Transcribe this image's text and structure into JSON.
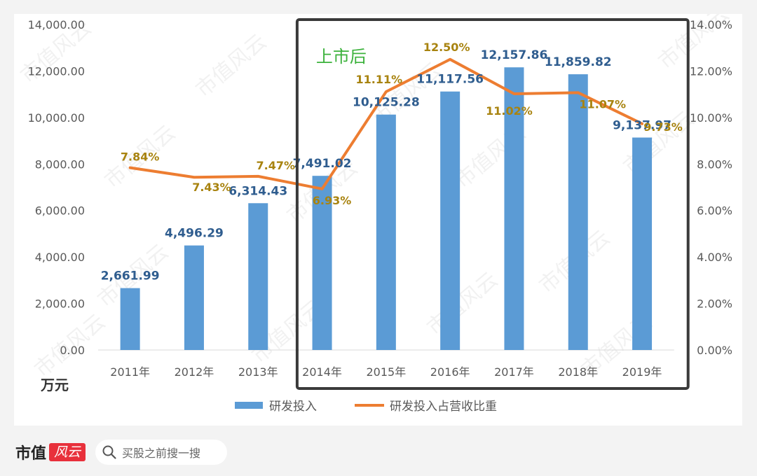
{
  "chart_data": {
    "type": "bar",
    "categories": [
      "2011年",
      "2012年",
      "2013年",
      "2014年",
      "2015年",
      "2016年",
      "2017年",
      "2018年",
      "2019年"
    ],
    "series": [
      {
        "name": "研发投入",
        "type": "bar",
        "axis": "left",
        "values": [
          2661.99,
          4496.29,
          6314.43,
          7491.02,
          10125.28,
          11117.56,
          12157.86,
          11859.82,
          9137.97
        ],
        "labels": [
          "2,661.99",
          "4,496.29",
          "6,314.43",
          "7,491.02",
          "10,125.28",
          "11,117.56",
          "12,157.86",
          "11,859.82",
          "9,137.97"
        ],
        "color": "#5b9bd5"
      },
      {
        "name": "研发投入占营收比重",
        "type": "line",
        "axis": "right",
        "values": [
          7.84,
          7.43,
          7.47,
          6.93,
          11.11,
          12.5,
          11.02,
          11.07,
          9.73
        ],
        "labels": [
          "7.84%",
          "7.43%",
          "7.47%",
          "6.93%",
          "11.11%",
          "12.50%",
          "11.02%",
          "11.07%",
          "9.73%"
        ],
        "color": "#ed7d31"
      }
    ],
    "y_left": {
      "min": 0,
      "max": 14000,
      "ticks": [
        "0.00",
        "2,000.00",
        "4,000.00",
        "6,000.00",
        "8,000.00",
        "10,000.00",
        "12,000.00",
        "14,000.00"
      ],
      "unit": "万元"
    },
    "y_right": {
      "min": 0,
      "max": 14,
      "ticks": [
        "0.00%",
        "2.00%",
        "4.00%",
        "6.00%",
        "8.00%",
        "10.00%",
        "12.00%",
        "14.00%"
      ]
    },
    "annotation": {
      "text": "上市后",
      "from_category": "2014年",
      "to_category": "2019年",
      "color": "#3cb23c"
    },
    "grid": false,
    "legend_position": "bottom"
  },
  "watermark_text": "市值风云",
  "footer": {
    "brand": "市值",
    "logo_text": "风云",
    "search_placeholder": "买股之前搜一搜",
    "search_icon": "search-icon"
  }
}
